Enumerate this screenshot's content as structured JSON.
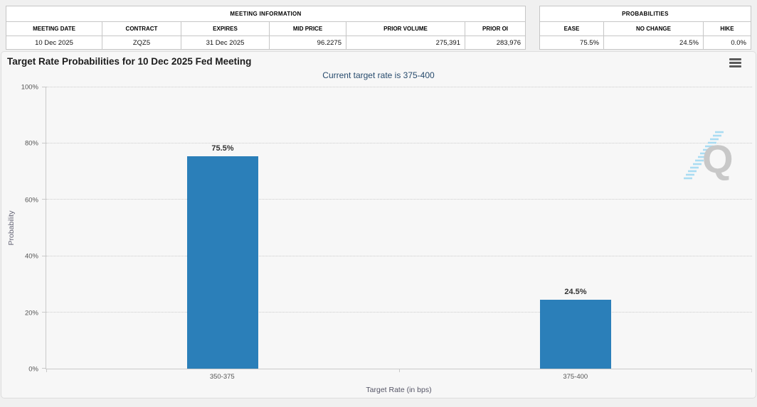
{
  "meeting_information": {
    "title": "MEETING INFORMATION",
    "columns": [
      "MEETING DATE",
      "CONTRACT",
      "EXPIRES",
      "MID PRICE",
      "PRIOR VOLUME",
      "PRIOR OI"
    ],
    "values": [
      "10 Dec 2025",
      "ZQZ5",
      "31 Dec 2025",
      "96.2275",
      "275,391",
      "283,976"
    ]
  },
  "probabilities": {
    "title": "PROBABILITIES",
    "columns": [
      "EASE",
      "NO CHANGE",
      "HIKE"
    ],
    "values": [
      "75.5%",
      "24.5%",
      "0.0%"
    ]
  },
  "chart": {
    "title": "Target Rate Probabilities for 10 Dec 2025 Fed Meeting",
    "subtitle": "Current target rate is 375-400",
    "menu_icon": "hamburger-menu",
    "watermark_letter": "Q"
  },
  "chart_data": {
    "type": "bar",
    "title": "Target Rate Probabilities for 10 Dec 2025 Fed Meeting",
    "subtitle": "Current target rate is 375-400",
    "categories": [
      "350-375",
      "375-400"
    ],
    "values": [
      75.5,
      24.5
    ],
    "data_labels": [
      "75.5%",
      "24.5%"
    ],
    "xlabel": "Target Rate (in bps)",
    "ylabel": "Probability",
    "ylim": [
      0,
      100
    ],
    "ytick_labels": [
      "0%",
      "20%",
      "40%",
      "60%",
      "80%",
      "100%"
    ],
    "grid": "dotted-horizontal",
    "legend": "none",
    "bar_color": "#2b7fb9"
  },
  "colors": {
    "bar": "#2b7fb9",
    "subtitle_text": "#274b6d",
    "axis_line": "#c9c9c9",
    "watermark_gray": "#c8c8c8",
    "watermark_blue": "#aadcf2",
    "card_background": "#f7f7f7"
  }
}
